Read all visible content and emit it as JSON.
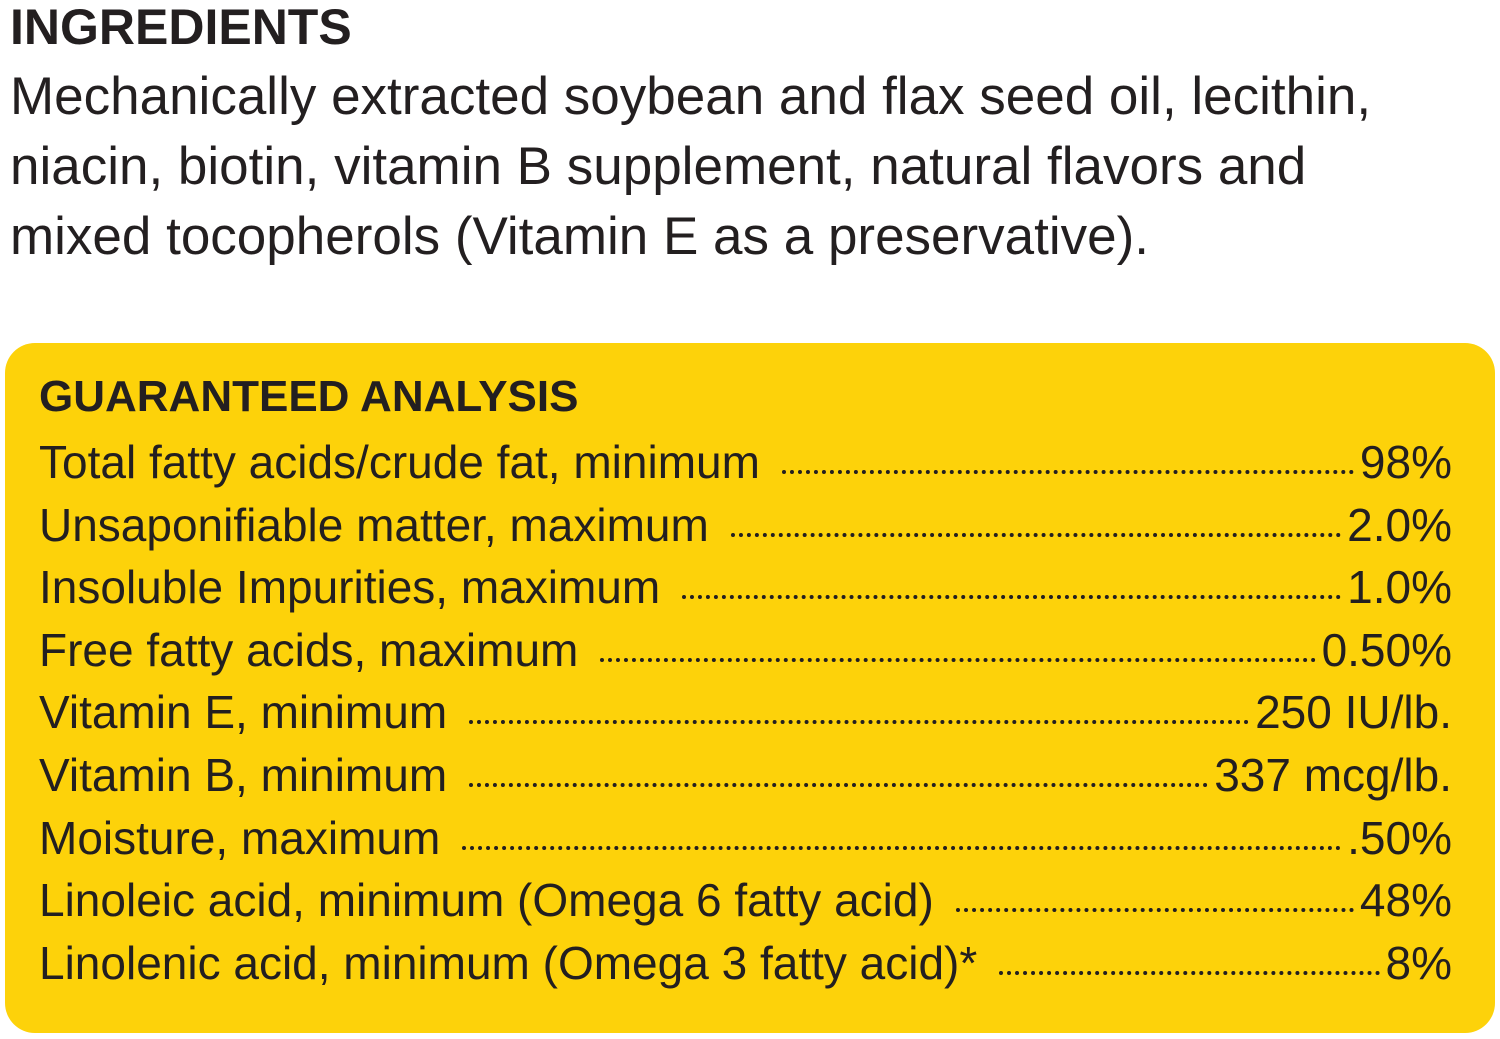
{
  "ingredients": {
    "title": "INGREDIENTS",
    "lines": [
      "Mechanically extracted soybean and flax seed oil, lecithin,",
      "niacin, biotin, vitamin B supplement, natural flavors and",
      "mixed tocopherols (Vitamin E as a preservative)."
    ]
  },
  "analysis": {
    "title": "GUARANTEED ANALYSIS",
    "rows": [
      [
        "Total fatty acids/crude fat, minimum",
        "98%"
      ],
      [
        "Unsaponifiable matter, maximum",
        "2.0%"
      ],
      [
        "Insoluble Impurities, maximum",
        "1.0%"
      ],
      [
        "Free fatty acids, maximum",
        "0.50%"
      ],
      [
        "Vitamin E, minimum",
        "250 IU/lb."
      ],
      [
        "Vitamin B, minimum",
        "337 mcg/lb."
      ],
      [
        "Moisture, maximum",
        ".50%"
      ],
      [
        "Linoleic acid, minimum (Omega 6 fatty acid)",
        "48%"
      ],
      [
        "Linolenic acid, minimum (Omega 3 fatty acid)*",
        "8%"
      ]
    ]
  }
}
